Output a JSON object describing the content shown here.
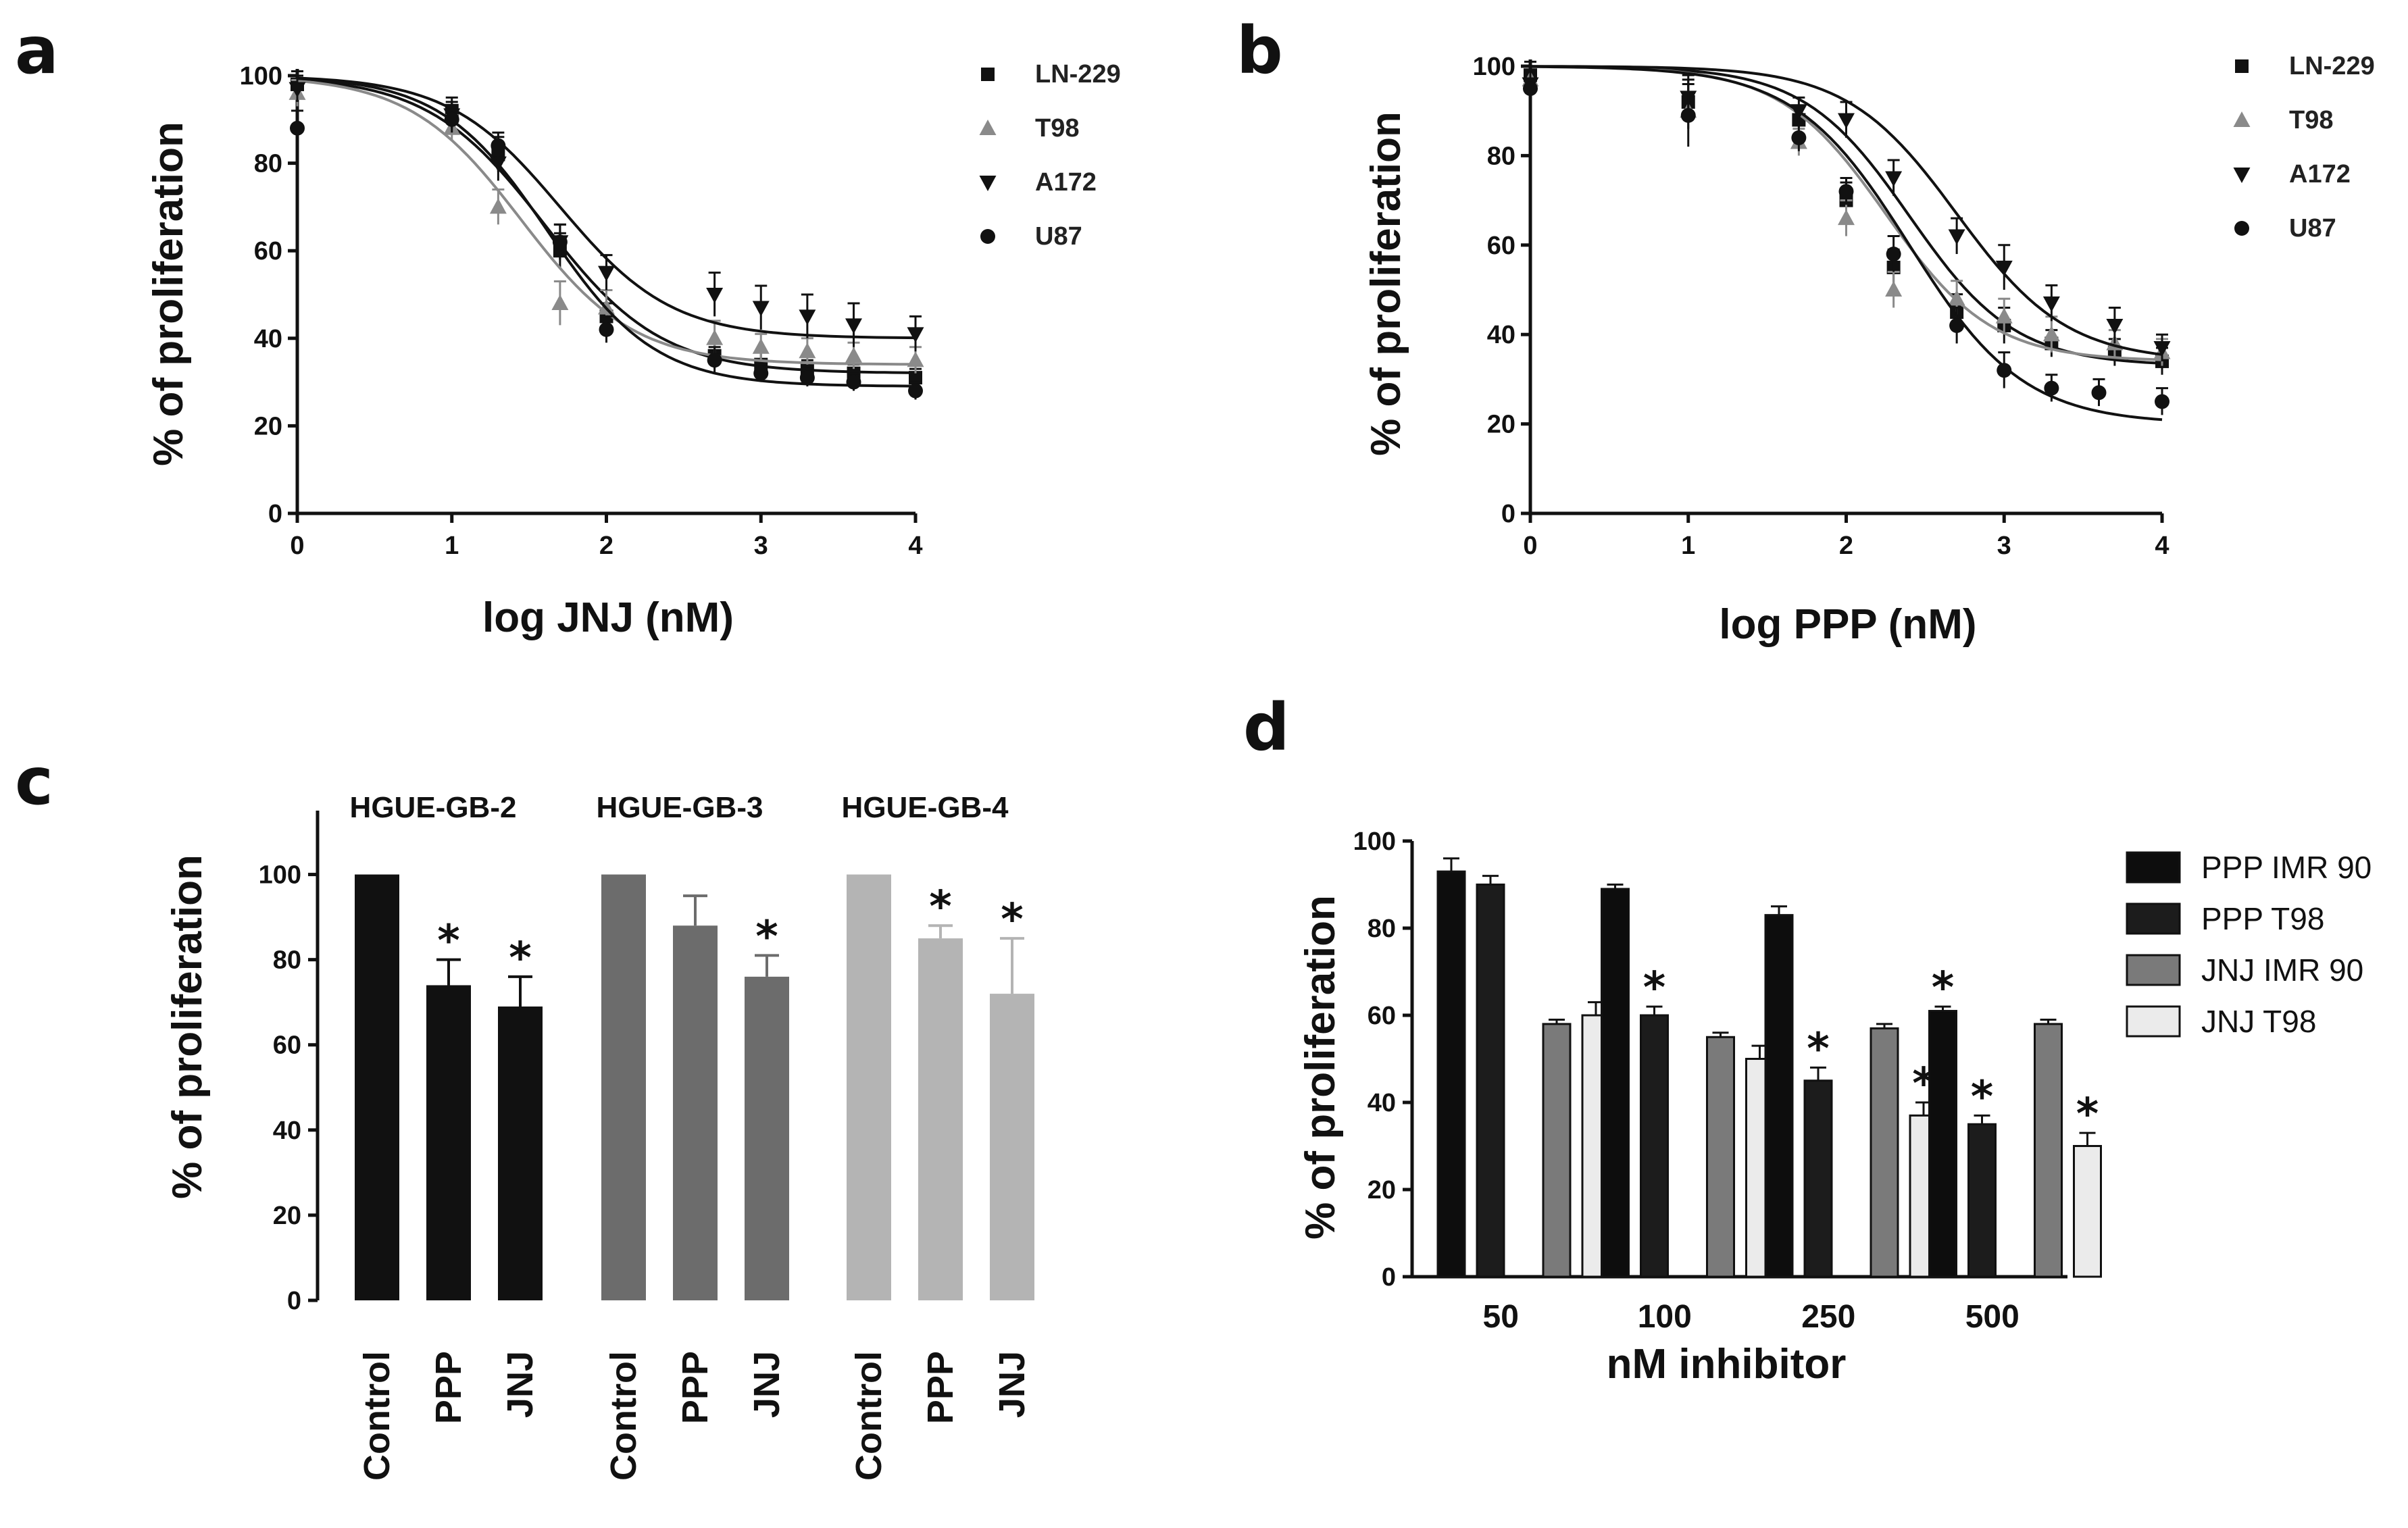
{
  "chart_data": [
    {
      "panel": "a",
      "type": "line",
      "xlabel": "log JNJ (nM)",
      "ylabel": "% of proliferation",
      "xlim": [
        0,
        4
      ],
      "ylim": [
        0,
        100
      ],
      "xticks": [
        "0",
        "1",
        "2",
        "3",
        "4"
      ],
      "yticks": [
        "0",
        "20",
        "40",
        "60",
        "80",
        "100"
      ],
      "legend": [
        "LN-229",
        "T98",
        "A172",
        "U87"
      ],
      "series": [
        {
          "name": "LN-229",
          "marker": "square",
          "color": "#111111",
          "top": 100,
          "bottom": 32,
          "logIC50": 1.6,
          "hill": 1.15,
          "x": [
            0,
            1,
            1.3,
            1.7,
            2,
            2.7,
            3,
            3.3,
            3.6,
            4
          ],
          "y": [
            98,
            92,
            82,
            60,
            45,
            36,
            34,
            33,
            32,
            31
          ],
          "err": [
            3,
            3,
            4,
            4,
            3,
            3,
            3,
            2,
            2,
            2
          ]
        },
        {
          "name": "T98",
          "marker": "triangle",
          "color": "#8a8a8a",
          "top": 100,
          "bottom": 34,
          "logIC50": 1.45,
          "hill": 1.2,
          "x": [
            0,
            1,
            1.3,
            1.7,
            2,
            2.7,
            3,
            3.3,
            3.6,
            4
          ],
          "y": [
            96,
            88,
            70,
            48,
            47,
            40,
            38,
            37,
            36,
            35
          ],
          "err": [
            3,
            3,
            4,
            5,
            4,
            4,
            3,
            3,
            3,
            3
          ]
        },
        {
          "name": "A172",
          "marker": "triangle-down",
          "color": "#111111",
          "top": 100,
          "bottom": 40,
          "logIC50": 1.7,
          "hill": 1.2,
          "x": [
            0,
            1,
            1.3,
            1.7,
            2,
            2.7,
            3,
            3.3,
            3.6,
            4
          ],
          "y": [
            97,
            91,
            80,
            62,
            55,
            50,
            47,
            45,
            43,
            41
          ],
          "err": [
            3,
            3,
            4,
            4,
            4,
            5,
            5,
            5,
            5,
            4
          ]
        },
        {
          "name": "U87",
          "marker": "circle",
          "color": "#111111",
          "top": 100,
          "bottom": 29,
          "logIC50": 1.62,
          "hill": 1.25,
          "x": [
            0,
            1,
            1.3,
            1.7,
            2,
            2.7,
            3,
            3.3,
            3.6,
            4
          ],
          "y": [
            88,
            90,
            84,
            62,
            42,
            35,
            32,
            31,
            30,
            28
          ],
          "err": [
            4,
            3,
            3,
            4,
            3,
            3,
            2,
            2,
            2,
            2
          ]
        }
      ]
    },
    {
      "panel": "b",
      "type": "line",
      "xlabel": "log PPP (nM)",
      "ylabel": "% of proliferation",
      "xlim": [
        0,
        4
      ],
      "ylim": [
        0,
        100
      ],
      "xticks": [
        "0",
        "1",
        "2",
        "3",
        "4"
      ],
      "yticks": [
        "0",
        "20",
        "40",
        "60",
        "80",
        "100"
      ],
      "legend": [
        "LN-229",
        "T98",
        "A172",
        "U87"
      ],
      "series": [
        {
          "name": "LN-229",
          "marker": "square",
          "color": "#111111",
          "top": 100,
          "bottom": 33,
          "logIC50": 2.4,
          "hill": 1.3,
          "x": [
            0,
            1,
            1.7,
            2,
            2.3,
            2.7,
            3,
            3.3,
            3.7,
            4
          ],
          "y": [
            98,
            92,
            88,
            70,
            55,
            45,
            42,
            38,
            36,
            34
          ],
          "err": [
            3,
            6,
            3,
            4,
            4,
            4,
            4,
            3,
            3,
            3
          ]
        },
        {
          "name": "T98",
          "marker": "triangle",
          "color": "#8a8a8a",
          "top": 100,
          "bottom": 34,
          "logIC50": 2.25,
          "hill": 1.3,
          "x": [
            0,
            1,
            1.7,
            2,
            2.3,
            2.7,
            3,
            3.3,
            3.7,
            4
          ],
          "y": [
            97,
            90,
            83,
            66,
            50,
            48,
            44,
            40,
            38,
            36
          ],
          "err": [
            3,
            4,
            3,
            4,
            4,
            4,
            4,
            4,
            3,
            3
          ]
        },
        {
          "name": "A172",
          "marker": "triangle-down",
          "color": "#111111",
          "top": 100,
          "bottom": 34,
          "logIC50": 2.7,
          "hill": 1.25,
          "x": [
            0,
            1,
            1.7,
            2,
            2.3,
            2.7,
            3,
            3.3,
            3.7,
            4
          ],
          "y": [
            96,
            93,
            90,
            88,
            75,
            62,
            55,
            47,
            42,
            37
          ],
          "err": [
            4,
            4,
            3,
            4,
            4,
            4,
            5,
            4,
            4,
            3
          ]
        },
        {
          "name": "U87",
          "marker": "circle",
          "color": "#111111",
          "top": 100,
          "bottom": 20,
          "logIC50": 2.4,
          "hill": 1.2,
          "x": [
            0,
            1,
            1.7,
            2,
            2.3,
            2.7,
            3,
            3.3,
            3.6,
            4
          ],
          "y": [
            95,
            89,
            84,
            72,
            58,
            42,
            32,
            28,
            27,
            25
          ],
          "err": [
            5,
            7,
            3,
            3,
            4,
            4,
            4,
            3,
            3,
            3
          ]
        }
      ]
    },
    {
      "panel": "c",
      "type": "bar",
      "ylabel": "% of proliferation",
      "ylim": [
        0,
        115
      ],
      "yticks": [
        "0",
        "20",
        "40",
        "60",
        "80",
        "100"
      ],
      "groups": [
        {
          "title": "HGUE-GB-2",
          "color": "#111111",
          "categories": [
            "Control",
            "PPP",
            "JNJ"
          ],
          "values": [
            100,
            74,
            69
          ],
          "err": [
            0,
            6,
            7
          ],
          "significant": [
            false,
            true,
            true
          ]
        },
        {
          "title": "HGUE-GB-3",
          "color": "#6c6c6c",
          "categories": [
            "Control",
            "PPP",
            "JNJ"
          ],
          "values": [
            100,
            88,
            76
          ],
          "err": [
            0,
            7,
            5
          ],
          "significant": [
            false,
            false,
            true
          ]
        },
        {
          "title": "HGUE-GB-4",
          "color": "#b4b4b4",
          "categories": [
            "Control",
            "PPP",
            "JNJ"
          ],
          "values": [
            100,
            85,
            72
          ],
          "err": [
            0,
            3,
            13
          ],
          "significant": [
            false,
            true,
            true
          ]
        }
      ],
      "significance_marker": "*"
    },
    {
      "panel": "d",
      "type": "bar",
      "xlabel": "nM inhibitor",
      "ylabel": "% of proliferation",
      "ylim": [
        0,
        100
      ],
      "yticks": [
        "0",
        "20",
        "40",
        "60",
        "80",
        "100"
      ],
      "categories": [
        "50",
        "100",
        "250",
        "500"
      ],
      "significance_marker": "*",
      "series": [
        {
          "name": "PPP IMR 90",
          "color": "#0d0d0d",
          "values": [
            93,
            89,
            83,
            61
          ],
          "err": [
            3,
            1,
            2,
            1
          ],
          "significant": [
            false,
            false,
            false,
            true
          ]
        },
        {
          "name": "PPP T98",
          "color": "#1c1c1c",
          "values": [
            90,
            60,
            45,
            35
          ],
          "err": [
            2,
            2,
            3,
            2
          ],
          "significant": [
            false,
            true,
            true,
            true
          ]
        },
        {
          "name": "JNJ IMR 90",
          "color": "#7a7a7a",
          "values": [
            58,
            55,
            57,
            58
          ],
          "err": [
            1,
            1,
            1,
            1
          ],
          "significant": [
            false,
            false,
            false,
            false
          ]
        },
        {
          "name": "JNJ T98",
          "color": "#ebebeb",
          "values": [
            60,
            50,
            37,
            30
          ],
          "err": [
            3,
            3,
            3,
            3
          ],
          "significant": [
            false,
            false,
            true,
            true
          ]
        }
      ]
    }
  ]
}
